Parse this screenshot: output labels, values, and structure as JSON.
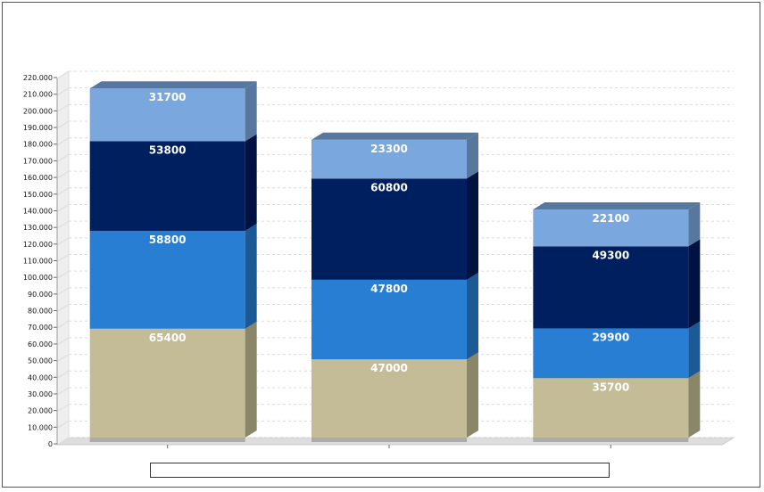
{
  "chart_data": {
    "type": "bar",
    "stacked": true,
    "three_d": true,
    "title": "",
    "xlabel": "",
    "ylabel": "",
    "ylim": [
      0,
      220000
    ],
    "yticks": [
      0,
      10000,
      20000,
      30000,
      40000,
      50000,
      60000,
      70000,
      80000,
      90000,
      100000,
      110000,
      120000,
      130000,
      140000,
      150000,
      160000,
      170000,
      180000,
      190000,
      200000,
      210000,
      220000
    ],
    "ytick_labels": [
      "0",
      "10.000",
      "20.000",
      "30.000",
      "40.000",
      "50.000",
      "60.000",
      "70.000",
      "80.000",
      "90.000",
      "100.000",
      "110.000",
      "120.000",
      "130.000",
      "140.000",
      "150.000",
      "160.000",
      "170.000",
      "180.000",
      "190.000",
      "200.000",
      "210.000",
      "220.000"
    ],
    "grid": true,
    "legend": "bottom",
    "categories": [
      "",
      "",
      ""
    ],
    "series": [
      {
        "color": "#c4bb97",
        "side": "#8c8668",
        "values": [
          65400,
          47000,
          35700
        ],
        "labels": [
          "65400",
          "47000",
          "35700"
        ]
      },
      {
        "color": "#287ed2",
        "side": "#1c5a96",
        "values": [
          58800,
          47800,
          29900
        ],
        "labels": [
          "58800",
          "47800",
          "29900"
        ]
      },
      {
        "color": "#001f5e",
        "side": "#001240",
        "values": [
          53800,
          60800,
          49300
        ],
        "labels": [
          "53800",
          "60800",
          "49300"
        ]
      },
      {
        "color": "#7aa7dd",
        "side": "#57779c",
        "values": [
          31700,
          23300,
          22100
        ],
        "labels": [
          "31700",
          "23300",
          "22100"
        ]
      }
    ]
  }
}
